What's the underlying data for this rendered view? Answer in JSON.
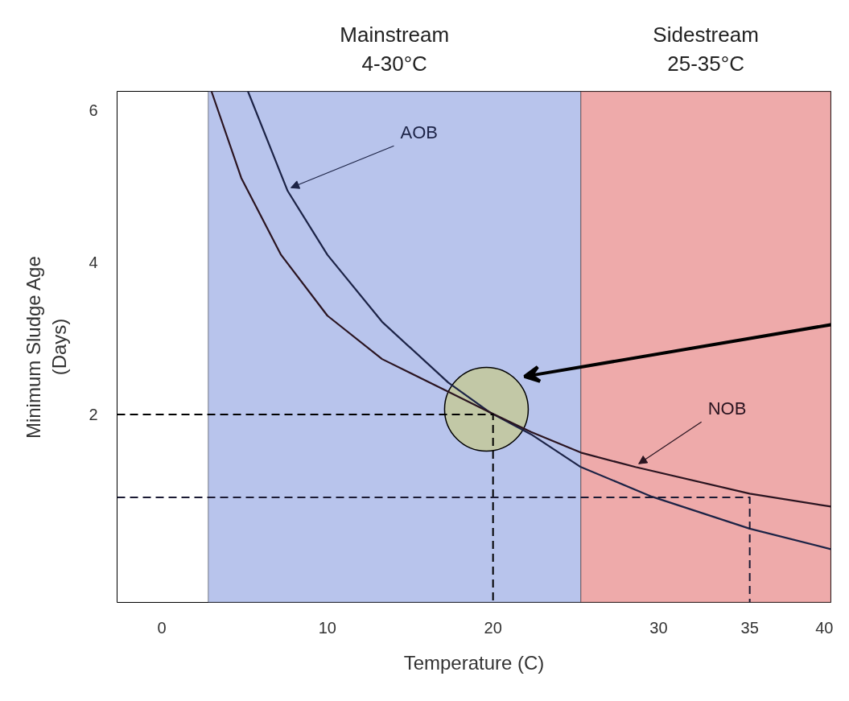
{
  "chart_data": {
    "type": "line",
    "xlabel": "Temperature (C)",
    "ylabel": "Minimum Sludge Age\n(Days)",
    "xlim": [
      -2.7,
      40.4
    ],
    "ylim": [
      -0.47,
      6.25
    ],
    "xticks": [
      0,
      10,
      20,
      30,
      {
        "value": 35.5,
        "label": "35"
      },
      40
    ],
    "yticks": [
      2,
      4,
      6
    ],
    "grid": false,
    "marker": "none",
    "bands": [
      {
        "axis": "x",
        "from": 2.8,
        "to": 25.3,
        "label": "Mainstream\n4-30°C",
        "color": "#b8c4ec"
      },
      {
        "axis": "x",
        "from": 25.3,
        "to": 40.4,
        "label": "Sidestream\n25-35°C",
        "color": "#eeaaaa"
      }
    ],
    "series": [
      {
        "type": "scatter",
        "marker": "circle",
        "color": "#c3c99a",
        "x": [
          19.6
        ],
        "values": [
          2.07
        ]
      },
      {
        "name": "AOB",
        "color": "#1c2346",
        "x": [
          5.2,
          7.6,
          10.0,
          13.3,
          17.3,
          19.8,
          22.3,
          25.3,
          29.6,
          35.5,
          40.4
        ],
        "values": [
          6.25,
          4.94,
          4.1,
          3.22,
          2.42,
          2.03,
          1.74,
          1.31,
          0.92,
          0.5,
          0.23
        ]
      },
      {
        "name": "NOB",
        "color": "#2a1420",
        "x": [
          3.0,
          4.8,
          7.2,
          10.0,
          13.3,
          17.3,
          19.8,
          22.3,
          25.3,
          28.6,
          35.5,
          40.4
        ],
        "values": [
          6.25,
          5.11,
          4.1,
          3.3,
          2.73,
          2.3,
          2.03,
          1.77,
          1.5,
          1.31,
          0.96,
          0.79
        ]
      },
      {
        "color": "#000000",
        "line_style": "dashed",
        "x": [
          -2.7,
          20.0,
          20.0
        ],
        "values": [
          2.0,
          2.0,
          -0.47
        ]
      },
      {
        "color": "#1a1a33",
        "line_style": "dashed",
        "x": [
          -2.7,
          35.5,
          35.5
        ],
        "values": [
          0.91,
          0.91,
          -0.47
        ]
      }
    ]
  }
}
